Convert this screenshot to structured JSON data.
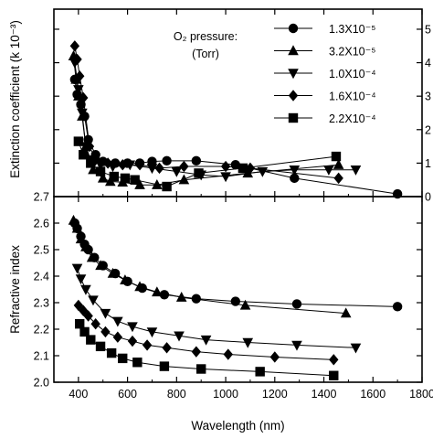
{
  "chart_data": [
    {
      "type": "line",
      "panel": "top",
      "ylabel": "Extinction coefficient (k 10⁻³)",
      "xlabel": "",
      "xlim": [
        300,
        1800
      ],
      "ylim": [
        0,
        5.6
      ],
      "y_ticks_right": [
        0,
        1,
        2,
        3,
        4,
        5
      ],
      "x_ticks": [
        400,
        600,
        800,
        1000,
        1200,
        1400,
        1600,
        1800
      ],
      "grid": false,
      "legend": {
        "position": "top-right",
        "title": "O₂ pressure:",
        "title_unit": "(Torr)"
      },
      "series": [
        {
          "name": "1.3X10⁻⁵",
          "marker": "circle",
          "x": [
            385,
            395,
            410,
            425,
            440,
            470,
            500,
            550,
            600,
            650,
            700,
            760,
            880,
            1040,
            1280,
            1700
          ],
          "y": [
            3.5,
            3.05,
            2.75,
            2.4,
            1.7,
            1.25,
            1.05,
            1.0,
            1.0,
            1.0,
            1.05,
            1.07,
            1.07,
            0.95,
            0.55,
            0.08
          ]
        },
        {
          "name": "3.2X10⁻⁵",
          "marker": "triangle-up",
          "x": [
            380,
            390,
            400,
            415,
            430,
            460,
            500,
            530,
            580,
            650,
            720,
            830,
            1090,
            1460
          ],
          "y": [
            4.2,
            3.5,
            3.0,
            2.4,
            1.5,
            0.8,
            0.55,
            0.45,
            0.43,
            0.35,
            0.35,
            0.5,
            0.7,
            0.95
          ]
        },
        {
          "name": "1.0X10⁻⁴",
          "marker": "triangle-down",
          "x": [
            385,
            400,
            415,
            430,
            450,
            490,
            540,
            610,
            700,
            800,
            900,
            1000,
            1150,
            1280,
            1420,
            1530
          ],
          "y": [
            4.0,
            3.2,
            2.5,
            1.5,
            1.1,
            0.95,
            0.9,
            0.95,
            0.85,
            0.75,
            0.65,
            0.6,
            0.75,
            0.8,
            0.8,
            0.8
          ]
        },
        {
          "name": "1.6X10⁻⁴",
          "marker": "diamond",
          "x": [
            385,
            395,
            405,
            420,
            445,
            470,
            520,
            580,
            650,
            730,
            830,
            1000,
            1100,
            1460
          ],
          "y": [
            4.5,
            4.1,
            3.6,
            2.95,
            1.5,
            1.1,
            1.0,
            0.95,
            0.95,
            0.85,
            0.9,
            0.9,
            0.85,
            0.55
          ]
        },
        {
          "name": "2.2X10⁻⁴",
          "marker": "square",
          "x": [
            400,
            420,
            450,
            490,
            545,
            590,
            630,
            760,
            890,
            1070,
            1450
          ],
          "y": [
            1.65,
            1.25,
            1.0,
            0.75,
            0.6,
            0.55,
            0.5,
            0.3,
            0.7,
            0.85,
            1.2
          ]
        }
      ]
    },
    {
      "type": "line",
      "panel": "bottom",
      "xlabel": "Wavelength (nm)",
      "ylabel": "Refractive index",
      "xlim": [
        300,
        1800
      ],
      "ylim": [
        2.0,
        2.7
      ],
      "x_ticks": [
        400,
        600,
        800,
        1000,
        1200,
        1400,
        1600,
        1800
      ],
      "y_ticks": [
        2.0,
        2.1,
        2.2,
        2.3,
        2.4,
        2.5,
        2.6,
        2.7
      ],
      "grid": false,
      "series": [
        {
          "name": "1.3X10⁻⁵",
          "marker": "circle",
          "x": [
            385,
            395,
            410,
            425,
            440,
            465,
            500,
            550,
            600,
            660,
            750,
            880,
            1040,
            1290,
            1700
          ],
          "y": [
            2.6,
            2.58,
            2.55,
            2.52,
            2.5,
            2.47,
            2.44,
            2.41,
            2.38,
            2.355,
            2.33,
            2.315,
            2.305,
            2.295,
            2.285
          ]
        },
        {
          "name": "3.2X10⁻⁵",
          "marker": "triangle-up",
          "x": [
            380,
            395,
            410,
            430,
            455,
            490,
            540,
            590,
            650,
            720,
            820,
            1080,
            1490
          ],
          "y": [
            2.61,
            2.58,
            2.54,
            2.51,
            2.47,
            2.44,
            2.41,
            2.385,
            2.36,
            2.34,
            2.32,
            2.29,
            2.26
          ]
        },
        {
          "name": "1.0X10⁻⁴",
          "marker": "triangle-down",
          "x": [
            395,
            410,
            430,
            460,
            510,
            560,
            620,
            700,
            810,
            920,
            1090,
            1290,
            1530
          ],
          "y": [
            2.43,
            2.39,
            2.35,
            2.31,
            2.26,
            2.23,
            2.21,
            2.19,
            2.175,
            2.16,
            2.15,
            2.14,
            2.13
          ]
        },
        {
          "name": "1.6X10⁻⁴",
          "marker": "diamond",
          "x": [
            400,
            420,
            440,
            470,
            510,
            560,
            620,
            680,
            760,
            880,
            1010,
            1200,
            1440
          ],
          "y": [
            2.29,
            2.27,
            2.25,
            2.22,
            2.19,
            2.17,
            2.155,
            2.14,
            2.13,
            2.115,
            2.105,
            2.095,
            2.085
          ]
        },
        {
          "name": "2.2X10⁻⁴",
          "marker": "square",
          "x": [
            405,
            425,
            450,
            490,
            535,
            580,
            640,
            750,
            900,
            1140,
            1440
          ],
          "y": [
            2.22,
            2.19,
            2.16,
            2.135,
            2.11,
            2.09,
            2.075,
            2.06,
            2.05,
            2.04,
            2.025
          ]
        }
      ]
    }
  ],
  "labels": {
    "top_y_tick_left": "2.7",
    "legend_title": "O₂ pressure:",
    "legend_unit": "(Torr)"
  }
}
